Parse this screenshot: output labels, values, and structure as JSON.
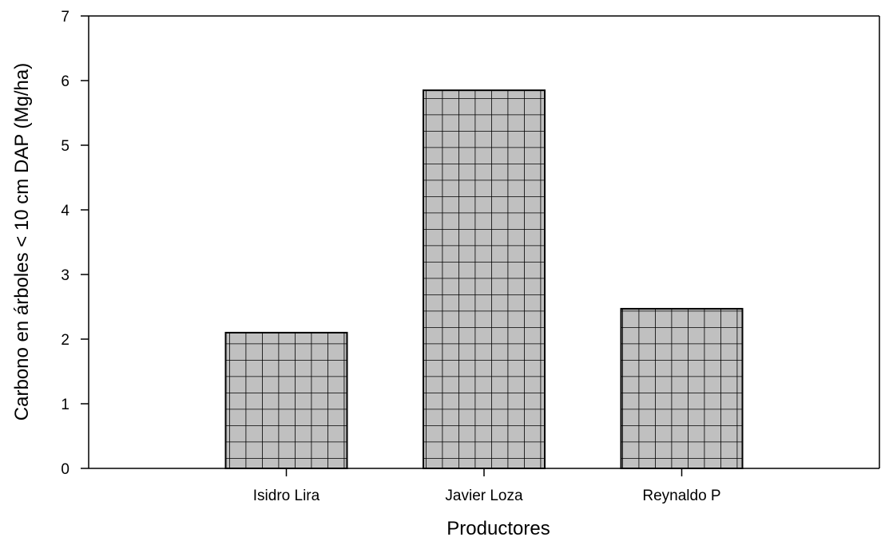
{
  "chart_data": {
    "type": "bar",
    "categories": [
      "Isidro Lira",
      "Javier Loza",
      "Reynaldo P"
    ],
    "values": [
      2.1,
      5.85,
      2.47
    ],
    "xlabel": "Productores",
    "ylabel": "Carbono en árboles < 10 cm DAP (Mg/ha)",
    "ylim": [
      0,
      7
    ],
    "yticks": [
      "0",
      "1",
      "2",
      "3",
      "4",
      "5",
      "6",
      "7"
    ],
    "grid": false,
    "bar_fill": "#c0c0c0",
    "bar_pattern": "crosshatch-grid",
    "bar_stroke": "#000000"
  }
}
